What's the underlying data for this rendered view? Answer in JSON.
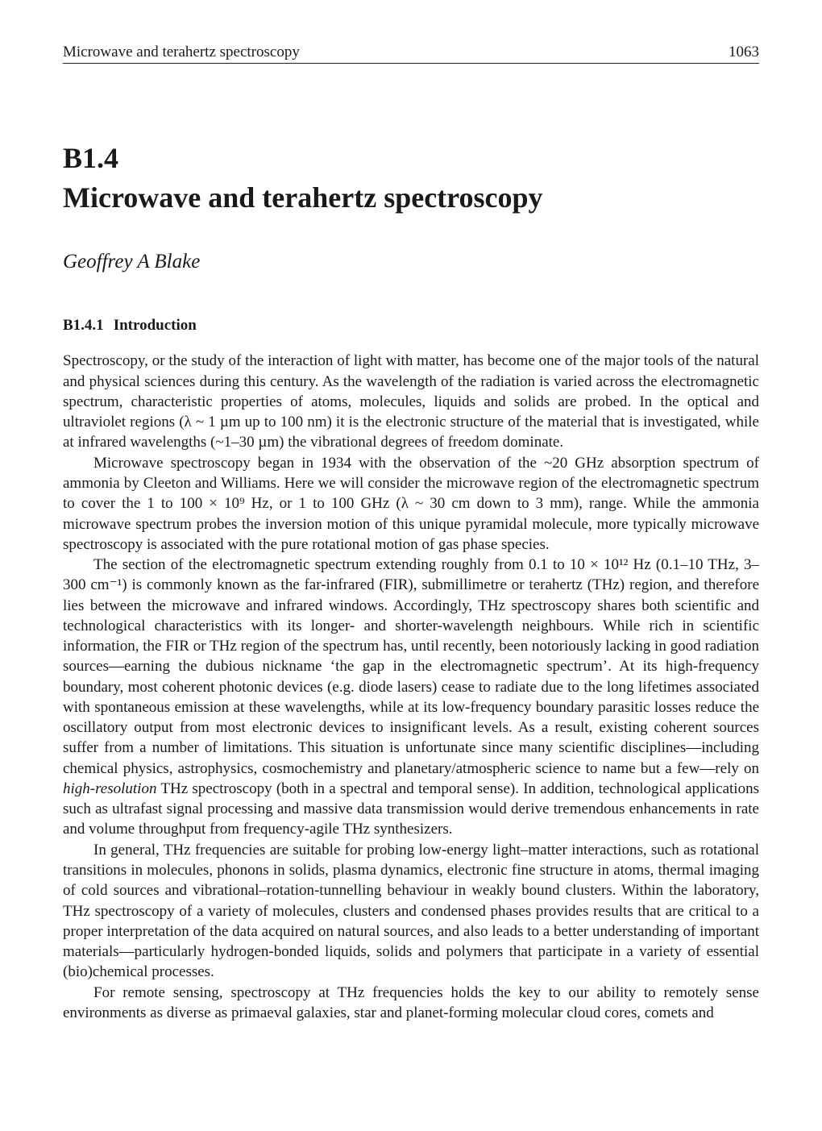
{
  "page": {
    "running_title": "Microwave and terahertz spectroscopy",
    "page_number": "1063",
    "background_color": "#ffffff",
    "text_color": "#1a1a1a",
    "font_family": "Times New Roman",
    "body_fontsize_pt": 14,
    "title_fontsize_pt": 27,
    "author_fontsize_pt": 19,
    "section_fontsize_pt": 14,
    "line_height": 1.33
  },
  "chapter": {
    "number": "B1.4",
    "title": "Microwave and terahertz spectroscopy",
    "author": "Geoffrey A Blake"
  },
  "section": {
    "number": "B1.4.1",
    "title": "Introduction"
  },
  "paragraphs": {
    "p1": "Spectroscopy, or the study of the interaction of light with matter, has become one of the major tools of the natural and physical sciences during this century. As the wavelength of the radiation is varied across the electromagnetic spectrum, characteristic properties of atoms, molecules, liquids and solids are probed. In the optical and ultraviolet regions (λ ~ 1 µm up to 100 nm) it is the electronic structure of the material that is investigated, while at infrared wavelengths (~1–30 µm) the vibrational degrees of freedom dominate.",
    "p2": "Microwave spectroscopy began in 1934 with the observation of the ~20 GHz absorption spectrum of ammonia by Cleeton and Williams. Here we will consider the microwave region of the electromagnetic spectrum to cover the 1 to 100 × 10⁹ Hz, or 1 to 100 GHz (λ ~ 30 cm down to 3 mm), range. While the ammonia microwave spectrum probes the inversion motion of this unique pyramidal molecule, more typically microwave spectroscopy is associated with the pure rotational motion of gas phase species.",
    "p3a": "The section of the electromagnetic spectrum extending roughly from 0.1 to 10 × 10¹² Hz (0.1–10 THz, 3–300 cm⁻¹) is commonly known as the far-infrared (FIR), submillimetre or terahertz (THz) region, and therefore lies between the microwave and infrared windows. Accordingly, THz spectroscopy shares both scientific and technological characteristics with its longer- and shorter-wavelength neighbours. While rich in scientific information, the FIR or THz region of the spectrum has, until recently, been notoriously lacking in good radiation sources—earning the dubious nickname ‘the gap in the electromagnetic spectrum’. At its high-frequency boundary, most coherent photonic devices (e.g. diode lasers) cease to radiate due to the long lifetimes associated with spontaneous emission at these wavelengths, while at its low-frequency boundary parasitic losses reduce the oscillatory output from most electronic devices to insignificant levels. As a result, existing coherent sources suffer from a number of limitations. This situation is unfortunate since many scientific disciplines—including chemical physics, astrophysics, cosmochemistry and planetary/atmospheric science to name but a few—rely on ",
    "p3_em": "high-resolution",
    "p3b": " THz spectroscopy (both in a spectral and temporal sense). In addition, technological applications such as ultrafast signal processing and massive data transmission would derive tremendous enhancements in rate and volume throughput from frequency-agile THz synthesizers.",
    "p4": "In general, THz frequencies are suitable for probing low-energy light–matter interactions, such as rotational transitions in molecules, phonons in solids, plasma dynamics, electronic fine structure in atoms, thermal imaging of cold sources and vibrational–rotation-tunnelling behaviour in weakly bound clusters. Within the laboratory, THz spectroscopy of a variety of molecules, clusters and condensed phases provides results that are critical to a proper interpretation of the data acquired on natural sources, and also leads to a better understanding of important materials—particularly hydrogen-bonded liquids, solids and polymers that participate in a variety of essential (bio)chemical processes.",
    "p5": "For remote sensing, spectroscopy at THz frequencies holds the key to our ability to remotely sense environments as diverse as primaeval galaxies, star and planet-forming molecular cloud cores, comets and"
  }
}
